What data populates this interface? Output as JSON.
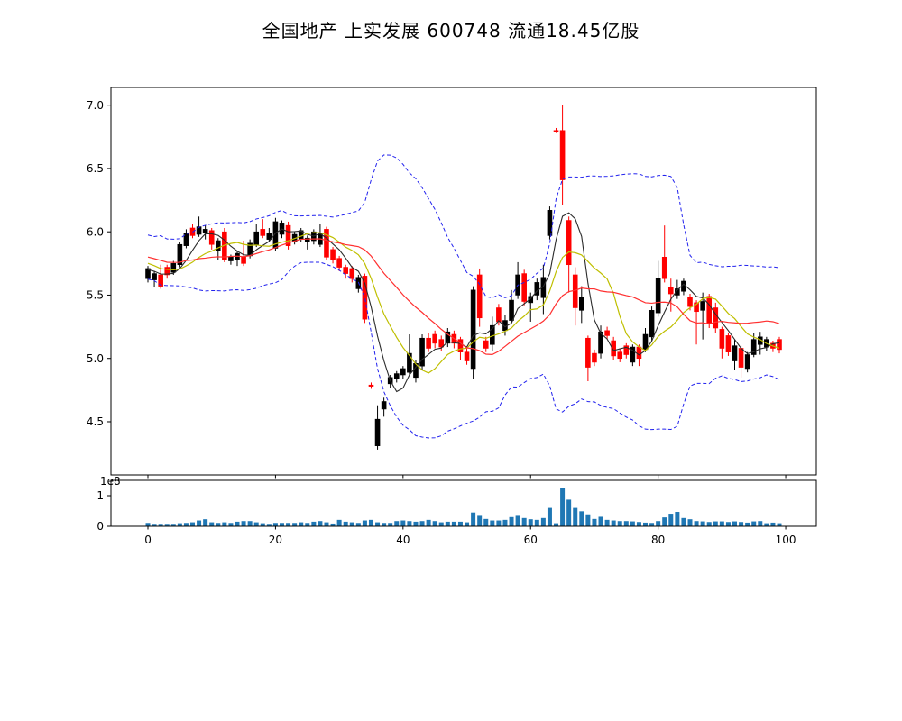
{
  "title": "全国地产  上实发展  600748  流通18.45亿股",
  "chart_data": {
    "type": "candlestick",
    "title": "全国地产  上实发展  600748  流通18.45亿股",
    "panels": [
      "price-kline",
      "volume"
    ],
    "x_ticks": [
      0,
      20,
      40,
      60,
      80,
      100
    ],
    "price_ticks": [
      4.5,
      5.0,
      5.5,
      6.0,
      6.5,
      7.0
    ],
    "volume_ticks": [
      0,
      1
    ],
    "volume_offset_label": "1e8",
    "xlim": [
      -5.8,
      104.8
    ],
    "price_ylim": [
      4.08,
      7.14
    ],
    "volume_ylim_1e8": [
      0,
      1.5
    ],
    "grid": false,
    "legend": "none",
    "colors": {
      "up_candle": "#000000",
      "down_candle": "#ff0000",
      "ma_fast": "#2b2b2b",
      "ma_mid": "#bfbf00",
      "ma_slow": "#ff3030",
      "band": "#2222ee",
      "volume_bar": "#1f77b4",
      "frame": "#000000",
      "background": "#ffffff"
    },
    "overlays": {
      "ma_fast_window": 5,
      "ma_mid_window": 10,
      "ma_slow_window": 20,
      "band_rule": "ma20 plus/minus 2 std",
      "seed_closes": [
        5.92,
        5.85,
        5.95,
        5.78,
        5.88,
        5.7,
        5.9,
        5.82,
        5.94,
        5.76,
        5.86,
        5.8,
        5.72,
        5.78,
        5.84,
        5.74,
        5.68,
        5.66,
        5.72
      ]
    },
    "candles_ohlc": [
      [
        5.63,
        5.73,
        5.6,
        5.71
      ],
      [
        5.62,
        5.69,
        5.56,
        5.67
      ],
      [
        5.66,
        5.74,
        5.55,
        5.57
      ],
      [
        5.72,
        5.74,
        5.63,
        5.66
      ],
      [
        5.68,
        5.77,
        5.66,
        5.75
      ],
      [
        5.74,
        5.92,
        5.72,
        5.9
      ],
      [
        5.89,
        6.02,
        5.87,
        5.99
      ],
      [
        6.03,
        6.06,
        5.95,
        5.97
      ],
      [
        5.98,
        6.12,
        5.96,
        6.04
      ],
      [
        5.99,
        6.05,
        5.94,
        6.02
      ],
      [
        6.01,
        6.03,
        5.86,
        5.9
      ],
      [
        5.85,
        5.95,
        5.78,
        5.93
      ],
      [
        6.0,
        6.03,
        5.76,
        5.78
      ],
      [
        5.77,
        5.82,
        5.74,
        5.8
      ],
      [
        5.78,
        5.85,
        5.73,
        5.83
      ],
      [
        5.8,
        5.93,
        5.73,
        5.75
      ],
      [
        5.81,
        5.94,
        5.79,
        5.91
      ],
      [
        5.9,
        6.06,
        5.88,
        6.0
      ],
      [
        6.02,
        6.1,
        5.95,
        5.97
      ],
      [
        5.94,
        6.03,
        5.92,
        5.99
      ],
      [
        5.87,
        6.11,
        5.85,
        6.08
      ],
      [
        5.98,
        6.09,
        5.95,
        6.07
      ],
      [
        6.05,
        6.08,
        5.86,
        5.89
      ],
      [
        5.92,
        6.0,
        5.9,
        5.98
      ],
      [
        5.94,
        6.03,
        5.92,
        6.01
      ],
      [
        5.92,
        5.97,
        5.86,
        5.95
      ],
      [
        5.93,
        6.02,
        5.9,
        6.0
      ],
      [
        5.9,
        6.06,
        5.88,
        5.99
      ],
      [
        6.02,
        6.04,
        5.78,
        5.8
      ],
      [
        5.86,
        5.88,
        5.75,
        5.78
      ],
      [
        5.79,
        5.81,
        5.69,
        5.72
      ],
      [
        5.72,
        5.74,
        5.63,
        5.67
      ],
      [
        5.71,
        5.73,
        5.6,
        5.63
      ],
      [
        5.55,
        5.66,
        5.52,
        5.64
      ],
      [
        5.65,
        5.67,
        5.28,
        5.31
      ],
      [
        4.79,
        4.81,
        4.76,
        4.78
      ],
      [
        4.31,
        4.63,
        4.28,
        4.52
      ],
      [
        4.6,
        4.69,
        4.54,
        4.66
      ],
      [
        4.8,
        4.87,
        4.77,
        4.85
      ],
      [
        4.84,
        4.9,
        4.81,
        4.88
      ],
      [
        4.87,
        4.94,
        4.84,
        4.92
      ],
      [
        4.89,
        5.19,
        4.86,
        5.04
      ],
      [
        4.85,
        4.99,
        4.81,
        4.96
      ],
      [
        4.94,
        5.19,
        4.91,
        5.16
      ],
      [
        5.16,
        5.2,
        5.05,
        5.08
      ],
      [
        5.19,
        5.22,
        5.08,
        5.12
      ],
      [
        5.15,
        5.18,
        5.06,
        5.09
      ],
      [
        5.12,
        5.24,
        5.09,
        5.21
      ],
      [
        5.19,
        5.22,
        5.08,
        5.12
      ],
      [
        5.15,
        5.17,
        4.99,
        5.05
      ],
      [
        5.05,
        5.08,
        4.95,
        4.98
      ],
      [
        4.92,
        5.57,
        4.84,
        5.54
      ],
      [
        5.66,
        5.71,
        5.25,
        5.32
      ],
      [
        5.14,
        5.17,
        5.05,
        5.08
      ],
      [
        5.11,
        5.33,
        5.06,
        5.26
      ],
      [
        5.4,
        5.43,
        5.26,
        5.29
      ],
      [
        5.22,
        5.34,
        5.18,
        5.3
      ],
      [
        5.3,
        5.54,
        5.28,
        5.46
      ],
      [
        5.5,
        5.76,
        5.47,
        5.66
      ],
      [
        5.67,
        5.7,
        5.42,
        5.45
      ],
      [
        5.44,
        5.52,
        5.29,
        5.49
      ],
      [
        5.5,
        5.63,
        5.46,
        5.6
      ],
      [
        5.48,
        5.74,
        5.35,
        5.64
      ],
      [
        5.97,
        6.2,
        5.94,
        6.17
      ],
      [
        6.8,
        6.82,
        6.78,
        6.79
      ],
      [
        6.8,
        7.0,
        6.21,
        6.41
      ],
      [
        6.09,
        6.12,
        5.52,
        5.74
      ],
      [
        5.66,
        5.72,
        5.26,
        5.4
      ],
      [
        5.38,
        5.57,
        5.28,
        5.48
      ],
      [
        5.16,
        5.18,
        4.82,
        4.93
      ],
      [
        5.04,
        5.07,
        4.94,
        4.97
      ],
      [
        5.04,
        5.26,
        5.0,
        5.21
      ],
      [
        5.22,
        5.25,
        5.15,
        5.18
      ],
      [
        5.14,
        5.17,
        4.99,
        5.02
      ],
      [
        5.05,
        5.08,
        4.97,
        5.0
      ],
      [
        5.1,
        5.12,
        5.0,
        5.03
      ],
      [
        4.97,
        5.11,
        4.94,
        5.09
      ],
      [
        5.09,
        5.11,
        4.94,
        5.0
      ],
      [
        5.07,
        5.24,
        5.05,
        5.19
      ],
      [
        5.17,
        5.41,
        5.14,
        5.38
      ],
      [
        5.36,
        5.77,
        5.33,
        5.63
      ],
      [
        5.8,
        6.05,
        5.6,
        5.63
      ],
      [
        5.56,
        5.63,
        5.37,
        5.51
      ],
      [
        5.5,
        5.62,
        5.47,
        5.55
      ],
      [
        5.53,
        5.63,
        5.5,
        5.61
      ],
      [
        5.48,
        5.51,
        5.38,
        5.41
      ],
      [
        5.44,
        5.46,
        5.11,
        5.37
      ],
      [
        5.38,
        5.52,
        5.15,
        5.45
      ],
      [
        5.49,
        5.51,
        5.24,
        5.28
      ],
      [
        5.4,
        5.44,
        5.2,
        5.24
      ],
      [
        5.23,
        5.25,
        5.0,
        5.08
      ],
      [
        5.18,
        5.2,
        5.02,
        5.05
      ],
      [
        4.98,
        5.15,
        4.91,
        5.1
      ],
      [
        5.08,
        5.1,
        4.85,
        4.93
      ],
      [
        4.92,
        5.05,
        4.89,
        5.03
      ],
      [
        5.03,
        5.2,
        5.01,
        5.15
      ],
      [
        5.11,
        5.21,
        5.03,
        5.17
      ],
      [
        5.09,
        5.17,
        5.06,
        5.15
      ],
      [
        5.12,
        5.14,
        5.05,
        5.08
      ],
      [
        5.15,
        5.17,
        5.04,
        5.07
      ]
    ],
    "volumes_1e8": [
      0.11,
      0.08,
      0.08,
      0.08,
      0.08,
      0.1,
      0.11,
      0.13,
      0.19,
      0.23,
      0.13,
      0.11,
      0.13,
      0.11,
      0.15,
      0.17,
      0.17,
      0.13,
      0.1,
      0.08,
      0.11,
      0.11,
      0.11,
      0.11,
      0.13,
      0.11,
      0.15,
      0.17,
      0.13,
      0.09,
      0.21,
      0.15,
      0.13,
      0.11,
      0.19,
      0.21,
      0.13,
      0.11,
      0.11,
      0.17,
      0.19,
      0.17,
      0.15,
      0.17,
      0.21,
      0.17,
      0.13,
      0.15,
      0.15,
      0.15,
      0.13,
      0.45,
      0.37,
      0.24,
      0.19,
      0.19,
      0.21,
      0.3,
      0.37,
      0.27,
      0.23,
      0.21,
      0.27,
      0.6,
      0.1,
      1.25,
      0.87,
      0.6,
      0.49,
      0.39,
      0.24,
      0.31,
      0.21,
      0.19,
      0.17,
      0.17,
      0.16,
      0.14,
      0.12,
      0.11,
      0.17,
      0.29,
      0.41,
      0.47,
      0.27,
      0.23,
      0.17,
      0.16,
      0.14,
      0.16,
      0.16,
      0.14,
      0.16,
      0.14,
      0.12,
      0.16,
      0.17,
      0.1,
      0.12,
      0.1
    ]
  }
}
